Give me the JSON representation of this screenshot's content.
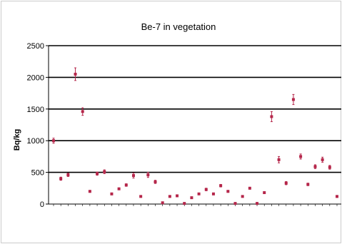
{
  "chart_data": {
    "type": "scatter",
    "title": "Be-7   in  vegetation",
    "xlabel": "",
    "ylabel": "Bq/kg",
    "ylim": [
      0,
      2500
    ],
    "yticks": [
      0,
      500,
      1000,
      1500,
      2000,
      2500
    ],
    "grid": true,
    "legend": "none",
    "marker_color": "#b5264a",
    "gridline_color": "#000000",
    "categories": [],
    "series": [
      {
        "values": [
          1000,
          400,
          460,
          2050,
          1460,
          200,
          480,
          510,
          160,
          240,
          300,
          450,
          120,
          460,
          350,
          20,
          120,
          130,
          10,
          100,
          160,
          230,
          160,
          290,
          200,
          10,
          120,
          250,
          10,
          180,
          1380,
          700,
          330,
          1650,
          750,
          310,
          590,
          700,
          580,
          120
        ],
        "errors": [
          40,
          25,
          25,
          100,
          60,
          15,
          25,
          30,
          15,
          15,
          20,
          40,
          10,
          40,
          25,
          5,
          10,
          10,
          5,
          10,
          10,
          20,
          15,
          20,
          15,
          5,
          10,
          15,
          5,
          15,
          80,
          50,
          25,
          80,
          40,
          20,
          30,
          40,
          30,
          15
        ]
      }
    ]
  }
}
